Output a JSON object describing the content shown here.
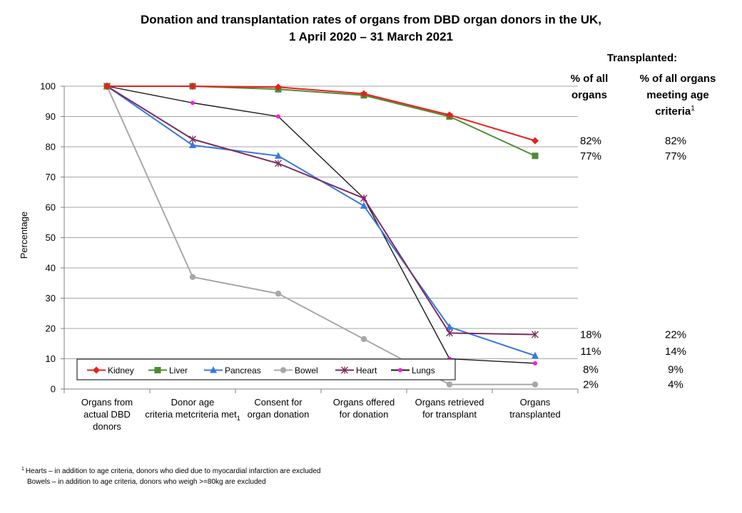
{
  "chart_data": {
    "type": "line",
    "title": "Donation and transplantation rates of organs from DBD organ donors in the UK,",
    "title_line2": "1 April 2020 – 31 March 2021",
    "ylabel": "Percentage",
    "xlabel": "",
    "ylim": [
      0,
      100
    ],
    "yticks": [
      0,
      10,
      20,
      30,
      40,
      50,
      60,
      70,
      80,
      90,
      100
    ],
    "grid": true,
    "categories": [
      [
        "Organs from",
        "actual DBD",
        "donors"
      ],
      [
        "Donor age",
        "criteria met"
      ],
      [
        "Consent for",
        "organ donation"
      ],
      [
        "Organs offered",
        "for donation"
      ],
      [
        "Organs retrieved",
        "for transplant"
      ],
      [
        "Organs",
        "transplanted"
      ]
    ],
    "category_sub": "1",
    "series": [
      {
        "name": "Kidney",
        "color": "#e8201c",
        "marker": "diamond",
        "values": [
          100,
          100,
          99.7,
          97.5,
          90.5,
          82
        ]
      },
      {
        "name": "Liver",
        "color": "#4f8b34",
        "marker": "square",
        "values": [
          100,
          100,
          99,
          97,
          90,
          77
        ]
      },
      {
        "name": "Pancreas",
        "color": "#3a78e0",
        "marker": "triangle",
        "values": [
          100,
          80.5,
          77,
          60.5,
          20.5,
          11
        ]
      },
      {
        "name": "Bowel",
        "color": "#a8a8a8",
        "marker": "circle",
        "values": [
          100,
          37,
          31.5,
          16.5,
          1.5,
          1.5
        ]
      },
      {
        "name": "Heart",
        "color": "#7b2c5c",
        "marker": "star",
        "values": [
          100,
          82.5,
          74.5,
          63,
          18.5,
          18
        ]
      },
      {
        "name": "Lungs",
        "color": "#ff1ad9",
        "marker": "dot",
        "values": [
          100,
          94.5,
          90,
          63,
          10,
          8.5
        ]
      }
    ],
    "lungs_line_color": "#1a1a1a",
    "legend_position": "bottom-left",
    "annotations": {
      "transplanted_header": "Transplanted:",
      "col1_header": [
        "% of all",
        "organs"
      ],
      "col2_header": [
        "% of all organs",
        "meeting age",
        "criteria"
      ],
      "col2_sup": "1",
      "rows": [
        {
          "value": 82,
          "all": "82%",
          "age": "82%"
        },
        {
          "value": 77,
          "all": "77%",
          "age": "77%"
        },
        {
          "value": 18,
          "all": "18%",
          "age": "22%"
        },
        {
          "value": 12.5,
          "all": "11%",
          "age": "14%"
        },
        {
          "value": 6.5,
          "all": "8%",
          "age": "9%"
        },
        {
          "value": 1.5,
          "all": "2%",
          "age": "4%"
        }
      ]
    },
    "footnotes": [
      {
        "sup": "1",
        "text": "Hearts – in addition to age criteria, donors who died due to myocardial infarction are excluded"
      },
      {
        "sup": "",
        "text": "Bowels – in addition to age criteria, donors who weigh >=80kg are excluded"
      }
    ]
  }
}
